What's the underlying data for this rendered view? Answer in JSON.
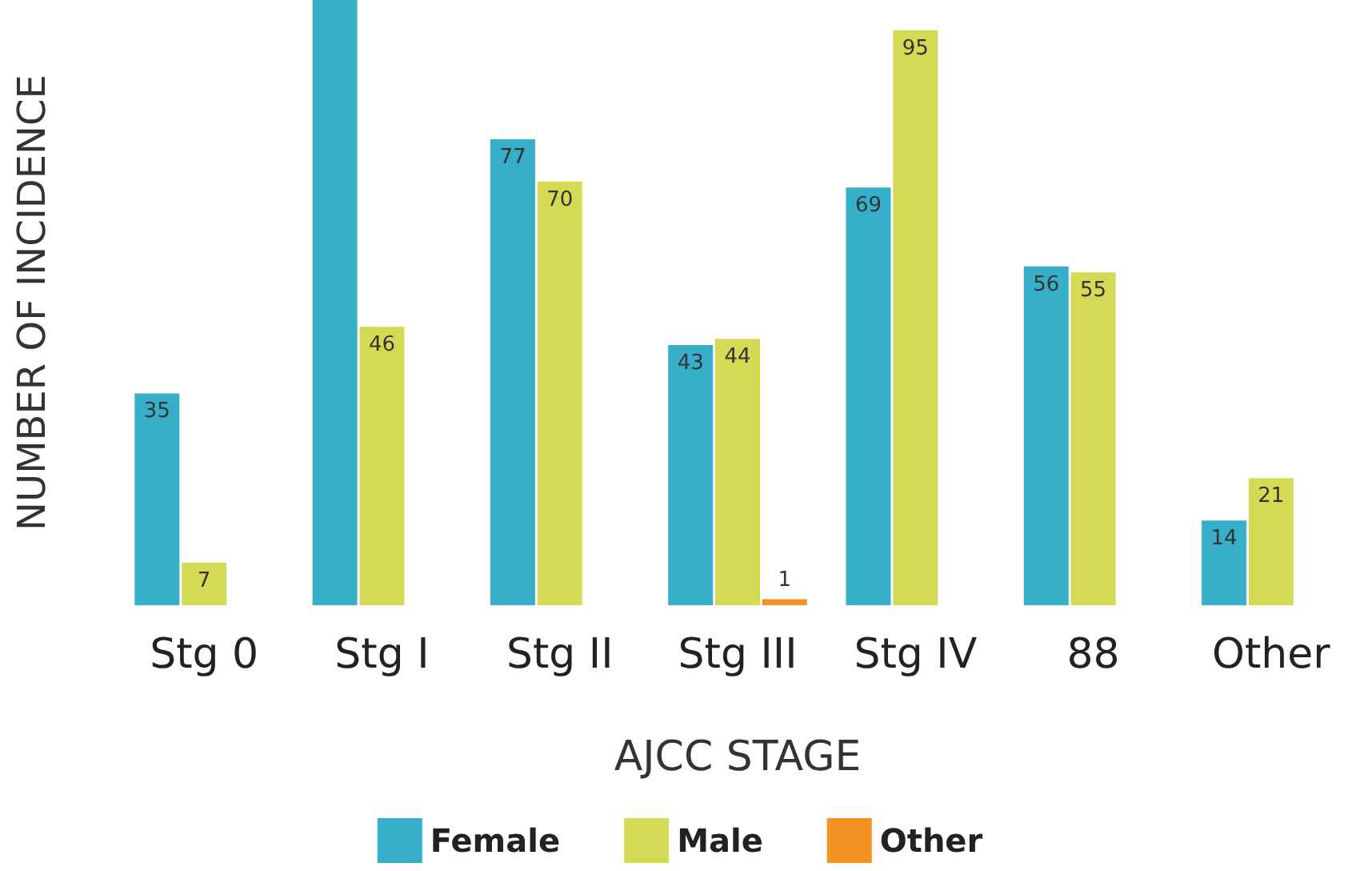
{
  "chart_data": {
    "type": "bar",
    "xlabel": "AJCC STAGE",
    "ylabel": "NUMBER OF INCIDENCE",
    "categories": [
      "Stg 0",
      "Stg I",
      "Stg II",
      "Stg III",
      "Stg IV",
      "88",
      "Other"
    ],
    "ylim": [
      0,
      100
    ],
    "tick_labels": "x",
    "legend": "bottom",
    "grid": false,
    "series": [
      {
        "name": "Female",
        "color": "#38afc8",
        "values": [
          35,
          100,
          77,
          43,
          69,
          56,
          14
        ],
        "value_labels": [
          "35",
          null,
          "77",
          "43",
          "69",
          "56",
          "14"
        ]
      },
      {
        "name": "Male",
        "color": "#d5da55",
        "values": [
          7,
          46,
          70,
          44,
          95,
          55,
          21
        ],
        "value_labels": [
          "7",
          "46",
          "70",
          "44",
          "95",
          "55",
          "21"
        ]
      },
      {
        "name": "Other",
        "color": "#f39220",
        "values": [
          null,
          null,
          null,
          1,
          null,
          null,
          null
        ],
        "value_labels": [
          null,
          null,
          null,
          "1",
          null,
          null,
          null
        ]
      }
    ]
  }
}
